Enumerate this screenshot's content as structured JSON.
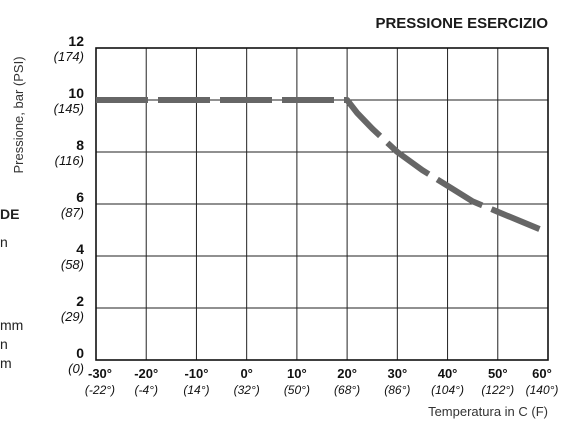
{
  "chart_data": {
    "type": "line",
    "title": "PRESSIONE ESERCIZIO",
    "ylabel": "Pressione, bar (PSI)",
    "xlabel": "Temperatura in C (F)",
    "xlim": [
      -30,
      60
    ],
    "ylim": [
      0,
      12
    ],
    "x_ticks": [
      {
        "value": -30,
        "c": "-30°",
        "f": "(-22°)"
      },
      {
        "value": -20,
        "c": "-20°",
        "f": "(-4°)"
      },
      {
        "value": -10,
        "c": "-10°",
        "f": "(14°)"
      },
      {
        "value": 0,
        "c": "0°",
        "f": "(32°)"
      },
      {
        "value": 10,
        "c": "10°",
        "f": "(50°)"
      },
      {
        "value": 20,
        "c": "20°",
        "f": "(68°)"
      },
      {
        "value": 30,
        "c": "30°",
        "f": "(86°)"
      },
      {
        "value": 40,
        "c": "40°",
        "f": "(104°)"
      },
      {
        "value": 50,
        "c": "50°",
        "f": "(122°)"
      },
      {
        "value": 60,
        "c": "60°",
        "f": "(140°)"
      }
    ],
    "y_ticks": [
      {
        "value": 0,
        "bar": "0",
        "psi": "(0)"
      },
      {
        "value": 2,
        "bar": "2",
        "psi": "(29)"
      },
      {
        "value": 4,
        "bar": "4",
        "psi": "(58)"
      },
      {
        "value": 6,
        "bar": "6",
        "psi": "(87)"
      },
      {
        "value": 8,
        "bar": "8",
        "psi": "(116)"
      },
      {
        "value": 10,
        "bar": "10",
        "psi": "(145)"
      },
      {
        "value": 12,
        "bar": "12",
        "psi": "(174)"
      }
    ],
    "grid": true,
    "series": [
      {
        "style": "dashed",
        "color": "#666666",
        "points": [
          [
            -30,
            10.0
          ],
          [
            20,
            10.0
          ],
          [
            22,
            9.5
          ],
          [
            25,
            8.9
          ],
          [
            30,
            8.0
          ],
          [
            35,
            7.3
          ],
          [
            40,
            6.7
          ],
          [
            45,
            6.1
          ],
          [
            50,
            5.7
          ],
          [
            55,
            5.3
          ],
          [
            60,
            4.9
          ]
        ]
      }
    ]
  },
  "edge_fragments": {
    "de": "DE",
    "n1": "n",
    "mm1": "mm",
    "n2": "n",
    "mm2": "m"
  }
}
